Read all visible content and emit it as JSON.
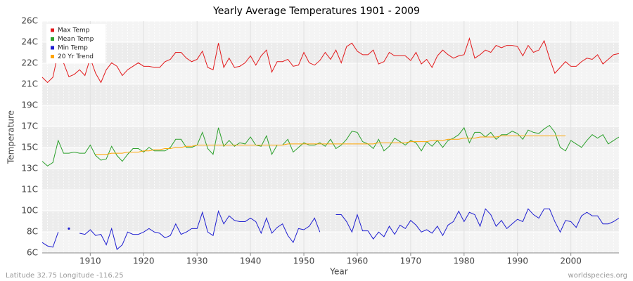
{
  "chart_data": {
    "type": "line",
    "title": "Yearly Average Temperatures 1901 - 2009",
    "x_label": "Year",
    "y_label": "Temperature",
    "footer_left": "Latitude 32.75 Longitude -116.25",
    "footer_right": "worldspecies.org",
    "grid": true,
    "legend_position": "top-left",
    "xlim": [
      1901,
      2009
    ],
    "xticks": [
      1910,
      1920,
      1930,
      1940,
      1950,
      1960,
      1970,
      1980,
      1990,
      2000
    ],
    "ylim": [
      6,
      26
    ],
    "yticks": [
      {
        "value": 6,
        "label": "6C"
      },
      {
        "value": 7.82,
        "label": "8C"
      },
      {
        "value": 9.64,
        "label": "10C"
      },
      {
        "value": 11.45,
        "label": "11C"
      },
      {
        "value": 13.27,
        "label": "13C"
      },
      {
        "value": 15.09,
        "label": "15C"
      },
      {
        "value": 16.91,
        "label": "17C"
      },
      {
        "value": 18.73,
        "label": "19C"
      },
      {
        "value": 20.55,
        "label": "21C"
      },
      {
        "value": 22.36,
        "label": "22C"
      },
      {
        "value": 24.18,
        "label": "24C"
      },
      {
        "value": 26,
        "label": "26C"
      }
    ],
    "x": [
      1901,
      1902,
      1903,
      1904,
      1905,
      1906,
      1907,
      1908,
      1909,
      1910,
      1911,
      1912,
      1913,
      1914,
      1915,
      1916,
      1917,
      1918,
      1919,
      1920,
      1921,
      1922,
      1923,
      1924,
      1925,
      1926,
      1927,
      1928,
      1929,
      1930,
      1931,
      1932,
      1933,
      1934,
      1935,
      1936,
      1937,
      1938,
      1939,
      1940,
      1941,
      1942,
      1943,
      1944,
      1945,
      1946,
      1947,
      1948,
      1949,
      1950,
      1951,
      1952,
      1953,
      1954,
      1955,
      1956,
      1957,
      1958,
      1959,
      1960,
      1961,
      1962,
      1963,
      1964,
      1965,
      1966,
      1967,
      1968,
      1969,
      1970,
      1971,
      1972,
      1973,
      1974,
      1975,
      1976,
      1977,
      1978,
      1979,
      1980,
      1981,
      1982,
      1983,
      1984,
      1985,
      1986,
      1987,
      1988,
      1989,
      1990,
      1991,
      1992,
      1993,
      1994,
      1995,
      1996,
      1997,
      1998,
      1999,
      2000,
      2001,
      2002,
      2003,
      2004,
      2005,
      2006,
      2007,
      2008,
      2009
    ],
    "series": [
      {
        "name": "Max Temp",
        "color": "#e31a1c",
        "values": [
          21.15,
          20.7,
          21.15,
          23.3,
          22.4,
          21.2,
          21.4,
          21.8,
          21.3,
          22.8,
          21.5,
          20.7,
          21.8,
          22.4,
          22.1,
          21.3,
          21.8,
          22.1,
          22.4,
          22.1,
          22.1,
          22.0,
          22.0,
          22.5,
          22.7,
          23.3,
          23.3,
          22.8,
          22.5,
          22.7,
          23.4,
          22.0,
          21.8,
          24.1,
          22.0,
          22.8,
          22.0,
          22.1,
          22.4,
          23.0,
          22.2,
          23.0,
          23.5,
          21.6,
          22.5,
          22.5,
          22.7,
          22.1,
          22.2,
          23.3,
          22.4,
          22.2,
          22.6,
          23.3,
          22.7,
          23.5,
          22.4,
          23.8,
          24.1,
          23.4,
          23.1,
          23.1,
          23.5,
          22.3,
          22.5,
          23.3,
          23.0,
          23.0,
          23.0,
          22.6,
          23.3,
          22.3,
          22.7,
          22.0,
          23.0,
          23.5,
          23.1,
          22.8,
          23.0,
          23.1,
          24.5,
          22.8,
          23.1,
          23.5,
          23.3,
          23.9,
          23.7,
          23.9,
          23.9,
          23.8,
          23.0,
          23.9,
          23.3,
          23.5,
          24.3,
          22.8,
          21.5,
          22.0,
          22.5,
          22.1,
          22.1,
          22.5,
          22.8,
          22.7,
          23.1,
          22.3,
          22.7,
          23.1,
          23.2
        ]
      },
      {
        "name": "Mean Temp",
        "color": "#2ca02c",
        "values": [
          13.9,
          13.5,
          13.8,
          15.7,
          14.6,
          14.6,
          14.7,
          14.6,
          14.6,
          15.3,
          14.4,
          14.0,
          14.1,
          15.2,
          14.4,
          13.9,
          14.5,
          15.0,
          15.0,
          14.7,
          15.1,
          14.8,
          14.8,
          14.8,
          15.1,
          15.8,
          15.8,
          15.1,
          15.1,
          15.3,
          16.4,
          15.0,
          14.5,
          16.8,
          15.2,
          15.7,
          15.2,
          15.5,
          15.4,
          16.0,
          15.3,
          15.2,
          16.1,
          14.5,
          15.3,
          15.3,
          15.8,
          14.7,
          15.1,
          15.5,
          15.3,
          15.3,
          15.5,
          15.2,
          15.8,
          15.0,
          15.3,
          15.8,
          16.5,
          16.4,
          15.6,
          15.4,
          15.0,
          15.8,
          14.8,
          15.2,
          15.9,
          15.6,
          15.3,
          15.7,
          15.5,
          14.8,
          15.6,
          15.2,
          15.7,
          15.1,
          15.7,
          15.9,
          16.2,
          16.8,
          15.5,
          16.4,
          16.4,
          16.0,
          16.4,
          15.8,
          16.2,
          16.2,
          16.5,
          16.3,
          15.8,
          16.6,
          16.4,
          16.3,
          16.7,
          17.0,
          16.4,
          15.1,
          14.8,
          15.7,
          15.4,
          15.1,
          15.7,
          16.2,
          15.9,
          16.2,
          15.4,
          15.7,
          16.0
        ]
      },
      {
        "name": "Min Temp",
        "color": "#1f1fd1",
        "values": [
          6.9,
          6.6,
          6.5,
          7.8,
          null,
          8.1,
          null,
          7.7,
          7.6,
          8.0,
          7.5,
          7.6,
          6.7,
          8.1,
          6.3,
          6.7,
          7.8,
          7.6,
          7.6,
          7.8,
          8.1,
          7.8,
          7.7,
          7.3,
          7.5,
          8.5,
          7.6,
          7.8,
          8.1,
          8.1,
          9.5,
          7.8,
          7.5,
          9.6,
          8.5,
          9.2,
          8.8,
          8.7,
          8.7,
          9.0,
          8.7,
          7.7,
          9.0,
          7.7,
          8.2,
          8.5,
          7.5,
          6.9,
          8.1,
          8.0,
          8.3,
          9.0,
          7.8,
          null,
          null,
          9.3,
          9.3,
          8.7,
          7.8,
          9.3,
          7.9,
          7.9,
          7.2,
          7.8,
          7.4,
          8.3,
          7.6,
          8.4,
          8.1,
          8.8,
          8.4,
          7.8,
          8.0,
          7.7,
          8.3,
          7.5,
          8.4,
          8.7,
          9.6,
          8.7,
          9.5,
          9.3,
          8.3,
          9.8,
          9.3,
          8.3,
          8.8,
          8.1,
          8.5,
          8.9,
          8.7,
          9.8,
          9.3,
          9.0,
          9.8,
          9.8,
          8.7,
          7.8,
          8.8,
          8.7,
          8.2,
          9.2,
          9.5,
          9.2,
          9.2,
          8.5,
          8.5,
          8.7,
          9.0
        ]
      },
      {
        "name": "20 Yr Trend",
        "color": "#ffa500",
        "values": [
          null,
          null,
          null,
          null,
          null,
          null,
          null,
          null,
          null,
          null,
          14.5,
          14.5,
          14.5,
          14.6,
          14.6,
          14.6,
          14.7,
          14.7,
          14.7,
          14.8,
          14.8,
          14.9,
          14.9,
          15.0,
          15.0,
          15.1,
          15.1,
          15.2,
          15.2,
          15.3,
          15.3,
          15.3,
          15.3,
          15.3,
          15.3,
          15.3,
          15.3,
          15.3,
          15.3,
          15.3,
          15.3,
          15.3,
          15.3,
          15.3,
          15.3,
          15.3,
          15.4,
          15.4,
          15.4,
          15.4,
          15.4,
          15.4,
          15.4,
          15.4,
          15.4,
          15.4,
          15.4,
          15.4,
          15.4,
          15.4,
          15.4,
          15.4,
          15.4,
          15.5,
          15.5,
          15.5,
          15.5,
          15.5,
          15.5,
          15.6,
          15.6,
          15.6,
          15.6,
          15.7,
          15.7,
          15.7,
          15.8,
          15.8,
          15.8,
          15.9,
          15.9,
          15.9,
          16.0,
          16.0,
          16.0,
          16.0,
          16.1,
          16.1,
          16.1,
          16.1,
          16.1,
          16.1,
          16.1,
          16.1,
          16.1,
          16.1,
          16.1,
          16.1,
          16.1,
          null,
          null,
          null,
          null,
          null,
          null,
          null,
          null,
          null,
          null
        ]
      }
    ]
  }
}
